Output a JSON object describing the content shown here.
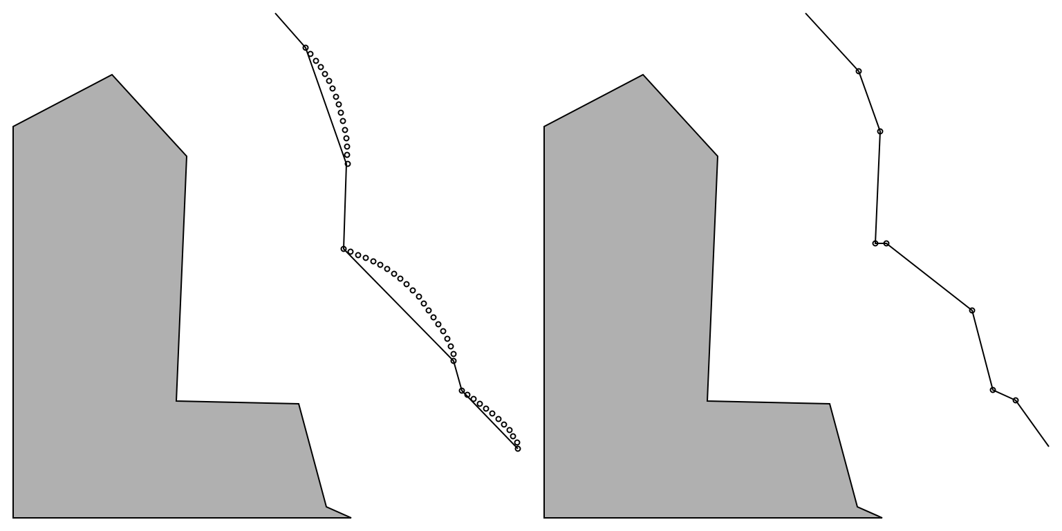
{
  "figure": {
    "description_free": true,
    "panels": [
      {
        "id": "dense",
        "obstacle_color": "#b0b0b0",
        "line_color": "#000000",
        "waypoint_count": 58
      },
      {
        "id": "sparse",
        "obstacle_color": "#b0b0b0",
        "line_color": "#000000",
        "waypoint_count": 7
      }
    ]
  }
}
